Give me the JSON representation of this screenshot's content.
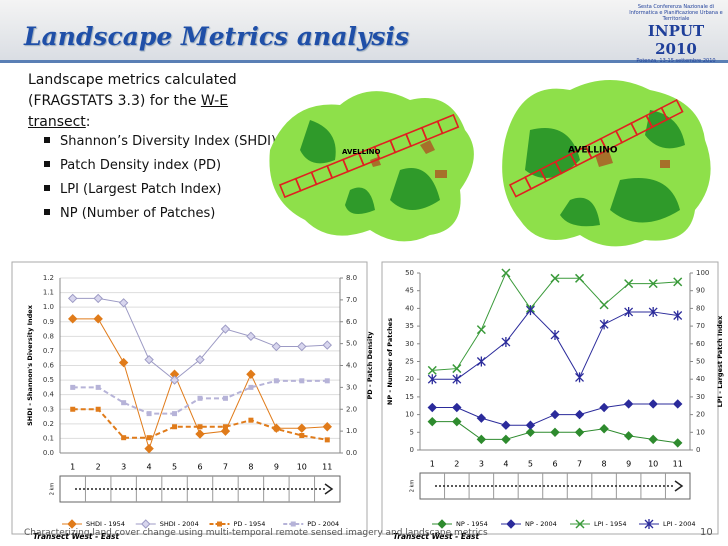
{
  "header": {
    "title": "Landscape Metrics analysis",
    "logo": {
      "line1": "Sesta Conferenza Nazionale di Informatica e Pianificazione Urbana e Territoriale",
      "name": "INPUT 2010",
      "line2": "Potenza, 13-15 settembre 2010"
    }
  },
  "body": {
    "intro": "Landscape metrics calculated (FRAGSTATS 3.3) for the ",
    "link": "W-E transect",
    "colon": ":",
    "bullets": [
      "Shannon’s Diversity Index (SHDI)",
      "Patch Density index (PD)",
      "LPI (Largest Patch Index)",
      "NP (Number of Patches)"
    ]
  },
  "maps": [
    {
      "label": "AVELLINO"
    },
    {
      "label": "AVELLINO"
    }
  ],
  "footer": {
    "text": "Characterizing land cover change using multi-temporal remote sensed imagery and landscape metrics",
    "page": "10"
  },
  "chart_data": [
    {
      "type": "line",
      "categories": [
        "1",
        "2",
        "3",
        "4",
        "5",
        "6",
        "7",
        "8",
        "9",
        "10",
        "11"
      ],
      "ylabel": "SHDI - Shannon's Diversity Index",
      "y2label": "PD - Patch Density",
      "ylim": [
        0,
        1.2
      ],
      "yticks": [
        {
          "value": 0,
          "label": "0.0"
        },
        0.1,
        0.2,
        0.3,
        0.4,
        0.5,
        0.6,
        0.7,
        0.8,
        0.9,
        {
          "value": 1,
          "label": "1.0"
        },
        1.1,
        1.2
      ],
      "y2lim": [
        0,
        8
      ],
      "y2ticks": [
        {
          "value": 0,
          "label": "0.0"
        },
        {
          "value": 1,
          "label": "1.0"
        },
        {
          "value": 2,
          "label": "2.0"
        },
        {
          "value": 3,
          "label": "3.0"
        },
        {
          "value": 4,
          "label": "4.0"
        },
        {
          "value": 5,
          "label": "5.0"
        },
        {
          "value": 6,
          "label": "6.0"
        },
        {
          "value": 7,
          "label": "7.0"
        },
        {
          "value": 8,
          "label": "8.0"
        }
      ],
      "grid": true,
      "legend": "bottom",
      "scale": "2 km",
      "note": "Transect West - East",
      "series": [
        {
          "name": "SHDI - 1954",
          "color": "#e07b1a",
          "marker": "diamond",
          "values": [
            0.92,
            0.92,
            0.62,
            0.03,
            0.54,
            0.13,
            0.15,
            0.54,
            0.17,
            0.17,
            0.18
          ]
        },
        {
          "name": "SHDI - 2004",
          "color": "#9c9ac4",
          "marker": "diamond-open",
          "values": [
            1.06,
            1.06,
            1.03,
            0.64,
            0.5,
            0.64,
            0.85,
            0.8,
            0.73,
            0.73,
            0.74
          ]
        },
        {
          "name": "PD - 1954",
          "color": "#e07b1a",
          "marker": "square",
          "dash": true,
          "axis": "y2",
          "values": [
            2.0,
            2.0,
            0.7,
            0.7,
            1.2,
            1.2,
            1.2,
            1.5,
            1.1,
            0.8,
            0.6
          ]
        },
        {
          "name": "PD - 2004",
          "color": "#b6b3d8",
          "marker": "square",
          "dash": true,
          "axis": "y2",
          "values": [
            3.0,
            3.0,
            2.3,
            1.8,
            1.8,
            2.5,
            2.5,
            3.0,
            3.3,
            3.3,
            3.3
          ]
        }
      ]
    },
    {
      "type": "line",
      "categories": [
        "1",
        "2",
        "3",
        "4",
        "5",
        "6",
        "7",
        "8",
        "9",
        "10",
        "11"
      ],
      "ylabel": "NP - Number of Patches",
      "y2label": "LPI - Largest Patch Index",
      "ylim": [
        0,
        50
      ],
      "yticks": [
        0,
        5,
        10,
        15,
        20,
        25,
        30,
        35,
        40,
        45,
        50
      ],
      "y2lim": [
        0,
        100
      ],
      "y2ticks": [
        0,
        10,
        20,
        30,
        40,
        50,
        60,
        70,
        80,
        90,
        100
      ],
      "grid": false,
      "legend": "bottom",
      "scale": "2 km",
      "note": "Transect West - East",
      "series": [
        {
          "name": "NP - 1954",
          "color": "#2e8b2e",
          "marker": "diamond",
          "values": [
            8,
            8,
            3,
            3,
            5,
            5,
            5,
            6,
            4,
            3,
            2
          ]
        },
        {
          "name": "NP - 2004",
          "color": "#2b2b9b",
          "marker": "diamond",
          "values": [
            12,
            12,
            9,
            7,
            7,
            10,
            10,
            12,
            13,
            13,
            13
          ]
        },
        {
          "name": "LPI - 1954",
          "color": "#3a9a3a",
          "marker": "x",
          "axis": "y2",
          "values": [
            45,
            46,
            68,
            100,
            80,
            97,
            97,
            82,
            94,
            94,
            95
          ]
        },
        {
          "name": "LPI - 2004",
          "color": "#2b2b9b",
          "marker": "star",
          "axis": "y2",
          "values": [
            40,
            40,
            50,
            61,
            79,
            65,
            41,
            71,
            78,
            78,
            76
          ]
        }
      ]
    }
  ]
}
